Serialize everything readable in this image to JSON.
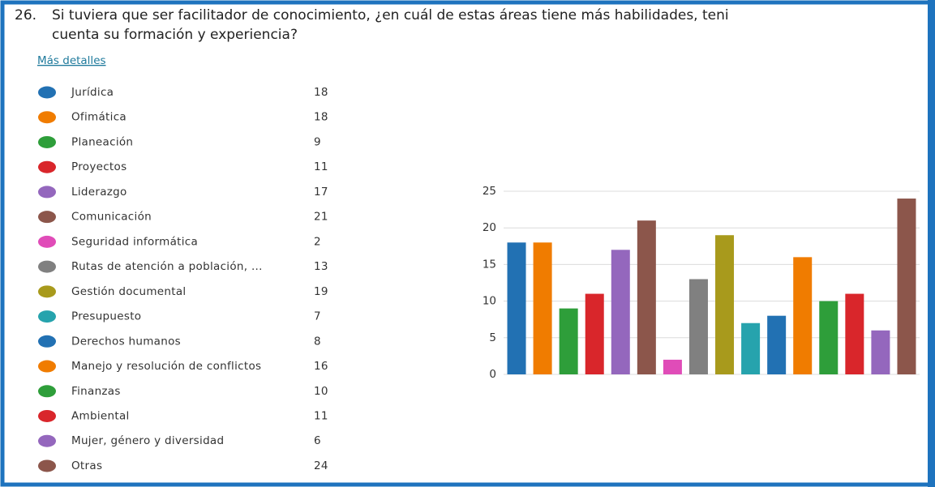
{
  "question_number": "26.",
  "link": "Más detalles",
  "chart_data": {
    "type": "bar",
    "title_lines": [
      "Si tuviera que ser facilitador de conocimiento, ¿en cuál de estas áreas tiene más habilidades, teni",
      "cuenta su formación y experiencia?"
    ],
    "categories": [
      "Jurídica",
      "Ofimática",
      "Planeación",
      "Proyectos",
      "Liderazgo",
      "Comunicación",
      "Seguridad informática",
      "Rutas de atención a población, ...",
      "Gestión documental",
      "Presupuesto",
      "Derechos humanos",
      "Manejo y resolución de conflictos",
      "Finanzas",
      "Ambiental",
      "Mujer, género y diversidad",
      "Otras"
    ],
    "values": [
      18,
      18,
      9,
      11,
      17,
      21,
      2,
      13,
      19,
      7,
      8,
      16,
      10,
      11,
      6,
      24
    ],
    "colors": [
      "#2271b3",
      "#f07c00",
      "#2e9e3a",
      "#d9262b",
      "#9467bd",
      "#8c564b",
      "#e04cb8",
      "#808080",
      "#a89a1c",
      "#26a3ad",
      "#2271b3",
      "#f07c00",
      "#2e9e3a",
      "#d9262b",
      "#9467bd",
      "#8c564b"
    ],
    "ylim": [
      0,
      25
    ],
    "yticks": [
      0,
      5,
      10,
      15,
      20,
      25
    ],
    "grid": true
  }
}
